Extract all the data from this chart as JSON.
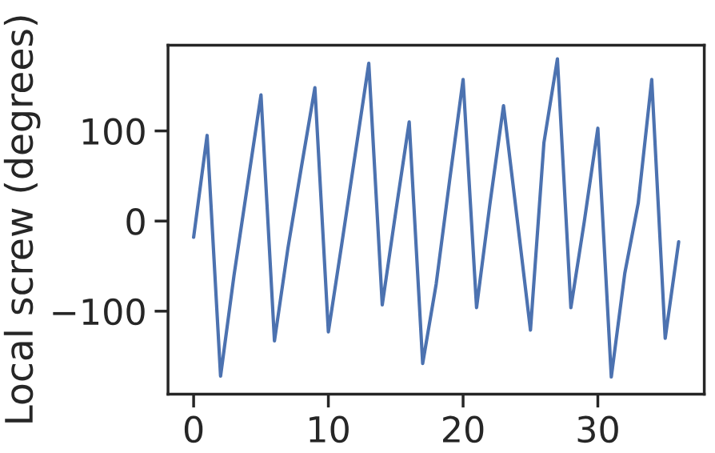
{
  "chart_data": {
    "type": "line",
    "ylabel": "Local screw (degrees)",
    "x": [
      0,
      1,
      2,
      3,
      4,
      5,
      6,
      7,
      8,
      9,
      10,
      11,
      12,
      13,
      14,
      15,
      16,
      17,
      18,
      19,
      20,
      21,
      22,
      23,
      24,
      25,
      26,
      27,
      28,
      29,
      30,
      31,
      32,
      33,
      34,
      35,
      36
    ],
    "series": [
      {
        "color": "#4c72b0",
        "values": [
          -18,
          95,
          -172,
          -60,
          40,
          140,
          -133,
          -30,
          60,
          148,
          -123,
          -25,
          75,
          175,
          -93,
          10,
          110,
          -158,
          -70,
          45,
          157,
          -96,
          20,
          128,
          4,
          -121,
          87,
          180,
          -96,
          0,
          103,
          -173,
          -58,
          20,
          157,
          -130,
          -23
        ]
      }
    ],
    "xlim": [
      -1.9,
      37.9
    ],
    "ylim": [
      -192,
      195
    ],
    "xticks": [
      0,
      10,
      20,
      30
    ],
    "yticks": [
      {
        "value": -100,
        "label": "−100"
      },
      0,
      100
    ],
    "grid": false,
    "marker": "none",
    "line_style": "solid"
  }
}
